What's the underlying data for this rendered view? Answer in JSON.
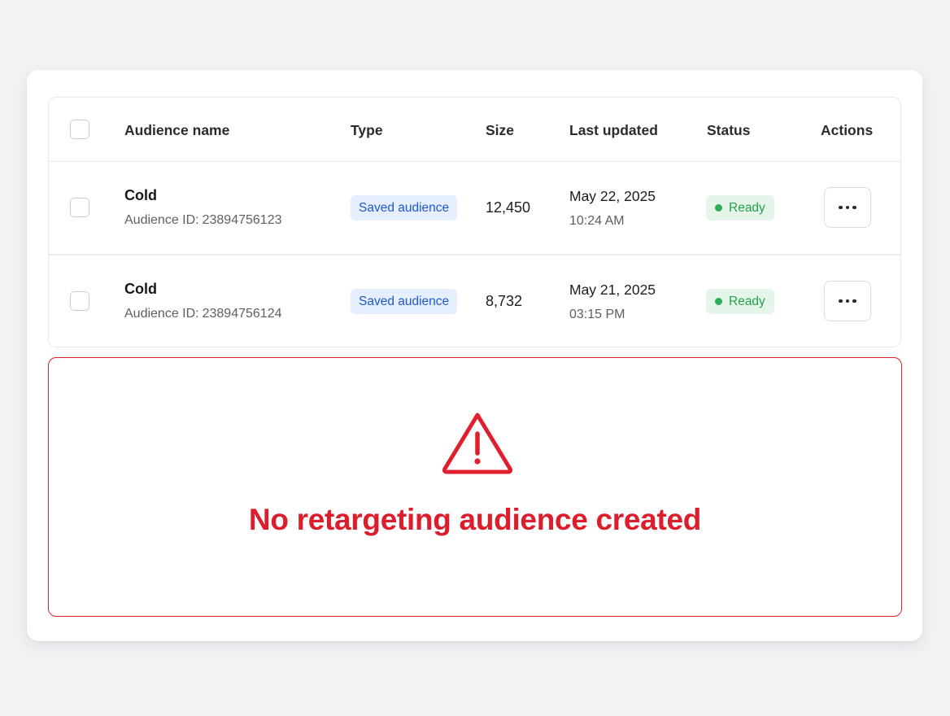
{
  "table": {
    "headers": {
      "name": "Audience name",
      "type": "Type",
      "size": "Size",
      "updated": "Last updated",
      "status": "Status",
      "actions": "Actions"
    },
    "rows": [
      {
        "name": "Cold",
        "id_label": "Audience ID:",
        "id": "23894756123",
        "type": "Saved audience",
        "size": "12,450",
        "date": "May 22, 2025",
        "time": "10:24 AM",
        "status": "Ready"
      },
      {
        "name": "Cold",
        "id_label": "Audience ID:",
        "id": "23894756124",
        "type": "Saved audience",
        "size": "8,732",
        "date": "May 21, 2025",
        "time": "03:15 PM",
        "status": "Ready"
      }
    ]
  },
  "alert": {
    "message": "No retargeting audience created",
    "icon": "warning-triangle-icon"
  },
  "colors": {
    "type_badge_bg": "#e6efff",
    "type_badge_text": "#1f59c9",
    "status_badge_bg": "#e5f5ea",
    "status_badge_text": "#25a14b",
    "alert_red": "#db1d2c"
  }
}
